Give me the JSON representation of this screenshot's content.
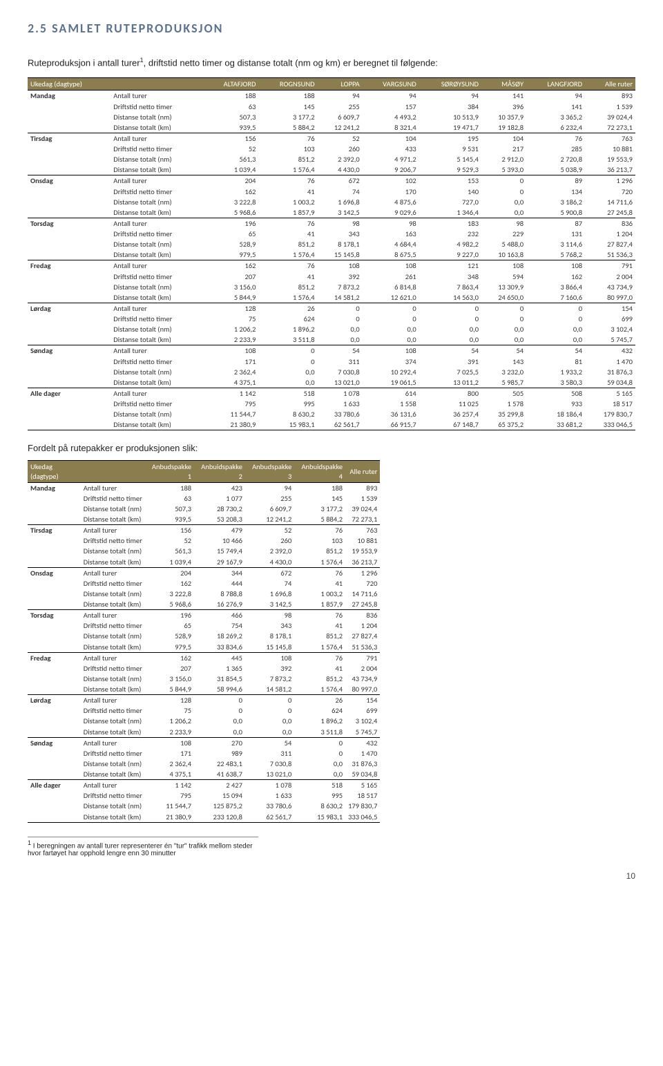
{
  "heading": "2.5  SAMLET RUTEPRODUKSJON",
  "intro_a": "Ruteproduksjon i antall turer",
  "intro_sup": "1",
  "intro_b": ", driftstid netto timer og distanse totalt (nm og km) er beregnet til følgende:",
  "mid_text": "Fordelt på rutepakker er produksjonen slik:",
  "footnote_sup": "1",
  "footnote_text": " I beregningen av antall turer representerer én \"tur\" trafikk mellom steder hvor fartøyet har opphold lengre enn 30 minutter",
  "page_number": "10",
  "table1": {
    "headers": [
      "Ukedag (dagtype)",
      "",
      "ALTAFJORD",
      "ROGNSUND",
      "LOPPA",
      "VARGSUND",
      "SØRØYSUND",
      "MÅSØY",
      "LANGFJORD",
      "Alle ruter"
    ],
    "groups": [
      {
        "day": "Mandag",
        "rows": [
          [
            "Antall turer",
            "188",
            "188",
            "94",
            "94",
            "94",
            "141",
            "94",
            "893"
          ],
          [
            "Driftstid netto timer",
            "63",
            "145",
            "255",
            "157",
            "384",
            "396",
            "141",
            "1 539"
          ],
          [
            "Distanse totalt (nm)",
            "507,3",
            "3 177,2",
            "6 609,7",
            "4 493,2",
            "10 513,9",
            "10 357,9",
            "3 365,2",
            "39 024,4"
          ],
          [
            "Distanse totalt (km)",
            "939,5",
            "5 884,2",
            "12 241,2",
            "8 321,4",
            "19 471,7",
            "19 182,8",
            "6 232,4",
            "72 273,1"
          ]
        ]
      },
      {
        "day": "Tirsdag",
        "rows": [
          [
            "Antall turer",
            "156",
            "76",
            "52",
            "104",
            "195",
            "104",
            "76",
            "763"
          ],
          [
            "Driftstid netto timer",
            "52",
            "103",
            "260",
            "433",
            "9 531",
            "217",
            "285",
            "10 881"
          ],
          [
            "Distanse totalt (nm)",
            "561,3",
            "851,2",
            "2 392,0",
            "4 971,2",
            "5 145,4",
            "2 912,0",
            "2 720,8",
            "19 553,9"
          ],
          [
            "Distanse totalt (km)",
            "1 039,4",
            "1 576,4",
            "4 430,0",
            "9 206,7",
            "9 529,3",
            "5 393,0",
            "5 038,9",
            "36 213,7"
          ]
        ]
      },
      {
        "day": "Onsdag",
        "rows": [
          [
            "Antall turer",
            "204",
            "76",
            "672",
            "102",
            "153",
            "0",
            "89",
            "1 296"
          ],
          [
            "Driftstid netto timer",
            "162",
            "41",
            "74",
            "170",
            "140",
            "0",
            "134",
            "720"
          ],
          [
            "Distanse totalt (nm)",
            "3 222,8",
            "1 003,2",
            "1 696,8",
            "4 875,6",
            "727,0",
            "0,0",
            "3 186,2",
            "14 711,6"
          ],
          [
            "Distanse totalt (km)",
            "5 968,6",
            "1 857,9",
            "3 142,5",
            "9 029,6",
            "1 346,4",
            "0,0",
            "5 900,8",
            "27 245,8"
          ]
        ]
      },
      {
        "day": "Torsdag",
        "rows": [
          [
            "Antall turer",
            "196",
            "76",
            "98",
            "98",
            "183",
            "98",
            "87",
            "836"
          ],
          [
            "Driftstid netto timer",
            "65",
            "41",
            "343",
            "163",
            "232",
            "229",
            "131",
            "1 204"
          ],
          [
            "Distanse totalt (nm)",
            "528,9",
            "851,2",
            "8 178,1",
            "4 684,4",
            "4 982,2",
            "5 488,0",
            "3 114,6",
            "27 827,4"
          ],
          [
            "Distanse totalt (km)",
            "979,5",
            "1 576,4",
            "15 145,8",
            "8 675,5",
            "9 227,0",
            "10 163,8",
            "5 768,2",
            "51 536,3"
          ]
        ]
      },
      {
        "day": "Fredag",
        "rows": [
          [
            "Antall turer",
            "162",
            "76",
            "108",
            "108",
            "121",
            "108",
            "108",
            "791"
          ],
          [
            "Driftstid netto timer",
            "207",
            "41",
            "392",
            "261",
            "348",
            "594",
            "162",
            "2 004"
          ],
          [
            "Distanse totalt (nm)",
            "3 156,0",
            "851,2",
            "7 873,2",
            "6 814,8",
            "7 863,4",
            "13 309,9",
            "3 866,4",
            "43 734,9"
          ],
          [
            "Distanse totalt (km)",
            "5 844,9",
            "1 576,4",
            "14 581,2",
            "12 621,0",
            "14 563,0",
            "24 650,0",
            "7 160,6",
            "80 997,0"
          ]
        ]
      },
      {
        "day": "Lørdag",
        "rows": [
          [
            "Antall turer",
            "128",
            "26",
            "0",
            "0",
            "0",
            "0",
            "0",
            "154"
          ],
          [
            "Driftstid netto timer",
            "75",
            "624",
            "0",
            "0",
            "0",
            "0",
            "0",
            "699"
          ],
          [
            "Distanse totalt (nm)",
            "1 206,2",
            "1 896,2",
            "0,0",
            "0,0",
            "0,0",
            "0,0",
            "0,0",
            "3 102,4"
          ],
          [
            "Distanse totalt (km)",
            "2 233,9",
            "3 511,8",
            "0,0",
            "0,0",
            "0,0",
            "0,0",
            "0,0",
            "5 745,7"
          ]
        ]
      },
      {
        "day": "Søndag",
        "rows": [
          [
            "Antall turer",
            "108",
            "0",
            "54",
            "108",
            "54",
            "54",
            "54",
            "432"
          ],
          [
            "Driftstid netto timer",
            "171",
            "0",
            "311",
            "374",
            "391",
            "143",
            "81",
            "1 470"
          ],
          [
            "Distanse totalt (nm)",
            "2 362,4",
            "0,0",
            "7 030,8",
            "10 292,4",
            "7 025,5",
            "3 232,0",
            "1 933,2",
            "31 876,3"
          ],
          [
            "Distanse totalt (km)",
            "4 375,1",
            "0,0",
            "13 021,0",
            "19 061,5",
            "13 011,2",
            "5 985,7",
            "3 580,3",
            "59 034,8"
          ]
        ]
      },
      {
        "day": "Alle dager",
        "rows": [
          [
            "Antall turer",
            "1 142",
            "518",
            "1 078",
            "614",
            "800",
            "505",
            "508",
            "5 165"
          ],
          [
            "Driftstid netto timer",
            "795",
            "995",
            "1 633",
            "1 558",
            "11 025",
            "1 578",
            "933",
            "18 517"
          ],
          [
            "Distanse totalt (nm)",
            "11 544,7",
            "8 630,2",
            "33 780,6",
            "36 131,6",
            "36 257,4",
            "35 299,8",
            "18 186,4",
            "179 830,7"
          ],
          [
            "Distanse totalt (km)",
            "21 380,9",
            "15 983,1",
            "62 561,7",
            "66 915,7",
            "67 148,7",
            "65 375,2",
            "33 681,2",
            "333 046,5"
          ]
        ]
      }
    ]
  },
  "table2": {
    "headers": [
      "Ukedag (dagtype)",
      "",
      "Anbudspakke 1",
      "Anbuidspakke 2",
      "Anbudspakke 3",
      "Anbuidspakke 4",
      "Alle ruter"
    ],
    "groups": [
      {
        "day": "Mandag",
        "rows": [
          [
            "Antall turer",
            "188",
            "423",
            "94",
            "188",
            "893"
          ],
          [
            "Driftstid netto timer",
            "63",
            "1 077",
            "255",
            "145",
            "1 539"
          ],
          [
            "Distanse totalt (nm)",
            "507,3",
            "28 730,2",
            "6 609,7",
            "3 177,2",
            "39 024,4"
          ],
          [
            "Distanse totalt (km)",
            "939,5",
            "53 208,3",
            "12 241,2",
            "5 884,2",
            "72 273,1"
          ]
        ]
      },
      {
        "day": "Tirsdag",
        "rows": [
          [
            "Antall turer",
            "156",
            "479",
            "52",
            "76",
            "763"
          ],
          [
            "Driftstid netto timer",
            "52",
            "10 466",
            "260",
            "103",
            "10 881"
          ],
          [
            "Distanse totalt (nm)",
            "561,3",
            "15 749,4",
            "2 392,0",
            "851,2",
            "19 553,9"
          ],
          [
            "Distanse totalt (km)",
            "1 039,4",
            "29 167,9",
            "4 430,0",
            "1 576,4",
            "36 213,7"
          ]
        ]
      },
      {
        "day": "Onsdag",
        "rows": [
          [
            "Antall turer",
            "204",
            "344",
            "672",
            "76",
            "1 296"
          ],
          [
            "Driftstid netto timer",
            "162",
            "444",
            "74",
            "41",
            "720"
          ],
          [
            "Distanse totalt (nm)",
            "3 222,8",
            "8 788,8",
            "1 696,8",
            "1 003,2",
            "14 711,6"
          ],
          [
            "Distanse totalt (km)",
            "5 968,6",
            "16 276,9",
            "3 142,5",
            "1 857,9",
            "27 245,8"
          ]
        ]
      },
      {
        "day": "Torsdag",
        "rows": [
          [
            "Antall turer",
            "196",
            "466",
            "98",
            "76",
            "836"
          ],
          [
            "Driftstid netto timer",
            "65",
            "754",
            "343",
            "41",
            "1 204"
          ],
          [
            "Distanse totalt (nm)",
            "528,9",
            "18 269,2",
            "8 178,1",
            "851,2",
            "27 827,4"
          ],
          [
            "Distanse totalt (km)",
            "979,5",
            "33 834,6",
            "15 145,8",
            "1 576,4",
            "51 536,3"
          ]
        ]
      },
      {
        "day": "Fredag",
        "rows": [
          [
            "Antall turer",
            "162",
            "445",
            "108",
            "76",
            "791"
          ],
          [
            "Driftstid netto timer",
            "207",
            "1 365",
            "392",
            "41",
            "2 004"
          ],
          [
            "Distanse totalt (nm)",
            "3 156,0",
            "31 854,5",
            "7 873,2",
            "851,2",
            "43 734,9"
          ],
          [
            "Distanse totalt (km)",
            "5 844,9",
            "58 994,6",
            "14 581,2",
            "1 576,4",
            "80 997,0"
          ]
        ]
      },
      {
        "day": "Lørdag",
        "rows": [
          [
            "Antall turer",
            "128",
            "0",
            "0",
            "26",
            "154"
          ],
          [
            "Driftstid netto timer",
            "75",
            "0",
            "0",
            "624",
            "699"
          ],
          [
            "Distanse totalt (nm)",
            "1 206,2",
            "0,0",
            "0,0",
            "1 896,2",
            "3 102,4"
          ],
          [
            "Distanse totalt (km)",
            "2 233,9",
            "0,0",
            "0,0",
            "3 511,8",
            "5 745,7"
          ]
        ]
      },
      {
        "day": "Søndag",
        "rows": [
          [
            "Antall turer",
            "108",
            "270",
            "54",
            "0",
            "432"
          ],
          [
            "Driftstid netto timer",
            "171",
            "989",
            "311",
            "0",
            "1 470"
          ],
          [
            "Distanse totalt (nm)",
            "2 362,4",
            "22 483,1",
            "7 030,8",
            "0,0",
            "31 876,3"
          ],
          [
            "Distanse totalt (km)",
            "4 375,1",
            "41 638,7",
            "13 021,0",
            "0,0",
            "59 034,8"
          ]
        ]
      },
      {
        "day": "Alle dager",
        "rows": [
          [
            "Antall turer",
            "1 142",
            "2 427",
            "1 078",
            "518",
            "5 165"
          ],
          [
            "Driftstid netto timer",
            "795",
            "15 094",
            "1 633",
            "995",
            "18 517"
          ],
          [
            "Distanse totalt (nm)",
            "11 544,7",
            "125 875,2",
            "33 780,6",
            "8 630,2",
            "179 830,7"
          ],
          [
            "Distanse totalt (km)",
            "21 380,9",
            "233 120,8",
            "62 561,7",
            "15 983,1",
            "333 046,5"
          ]
        ]
      }
    ]
  }
}
